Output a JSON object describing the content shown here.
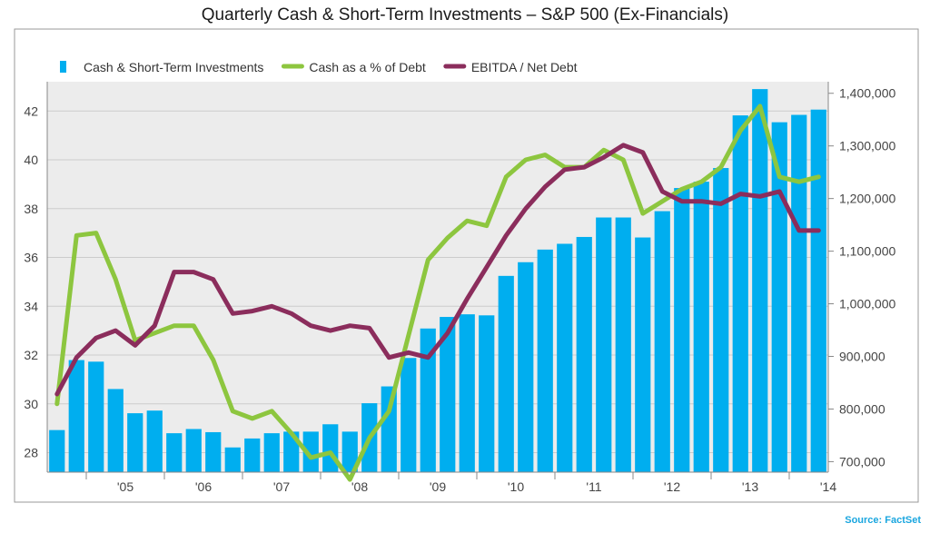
{
  "chart_data": {
    "type": "bar",
    "title": "Quarterly Cash & Short-Term Investments – S&P 500 (Ex-Financials)",
    "source": "Source: FactSet",
    "x_labels": [
      "'05",
      "'06",
      "'07",
      "'08",
      "'09",
      "'10",
      "'11",
      "'12",
      "'13",
      "'14"
    ],
    "left_axis": {
      "ticks": [
        "28",
        "30",
        "32",
        "34",
        "36",
        "38",
        "40",
        "42"
      ],
      "range": [
        27.2,
        43.2
      ]
    },
    "right_axis": {
      "ticks": [
        "700,000",
        "800,000",
        "900,000",
        "1,000,000",
        "1,100,000",
        "1,200,000",
        "1,300,000",
        "1,400,000"
      ],
      "range": [
        680000,
        1422000
      ]
    },
    "colors": {
      "bars": "#00aeef",
      "cash_pct": "#8dc63f",
      "ebitda": "#8b2d5c",
      "grid": "#cccccc",
      "plot_bg": "#ececec"
    },
    "legend": [
      {
        "name": "Cash & Short-Term Investments",
        "kind": "bar"
      },
      {
        "name": "Cash as a % of Debt",
        "kind": "line"
      },
      {
        "name": "EBITDA / Net Debt",
        "kind": "line"
      }
    ],
    "series": {
      "cash": [
        760000,
        893000,
        890000,
        838000,
        792000,
        797000,
        754000,
        762000,
        756000,
        727000,
        744000,
        754000,
        757000,
        757000,
        771000,
        757000,
        811000,
        843000,
        897000,
        953000,
        975000,
        980000,
        978000,
        1053000,
        1079000,
        1103000,
        1114000,
        1127000,
        1164000,
        1164000,
        1126000,
        1176000,
        1220000,
        1232000,
        1258000,
        1358000,
        1408000,
        1345000,
        1359000,
        1369000
      ],
      "cash_pct": [
        30.0,
        36.9,
        37.0,
        35.1,
        32.6,
        32.9,
        33.2,
        33.2,
        31.8,
        29.7,
        29.4,
        29.7,
        28.8,
        27.8,
        28.0,
        26.9,
        28.6,
        29.7,
        32.8,
        35.9,
        36.8,
        37.5,
        37.3,
        39.3,
        40.0,
        40.2,
        39.7,
        39.7,
        40.4,
        40.0,
        37.8,
        38.3,
        38.8,
        39.1,
        39.7,
        41.2,
        42.2,
        39.3,
        39.1,
        39.3
      ],
      "ebitda": [
        30.4,
        31.9,
        32.7,
        33.0,
        32.4,
        33.2,
        35.4,
        35.4,
        35.1,
        33.7,
        33.8,
        34.0,
        33.7,
        33.2,
        33.0,
        33.2,
        33.1,
        31.9,
        32.1,
        31.9,
        32.9,
        34.3,
        35.6,
        36.9,
        38.0,
        38.9,
        39.6,
        39.7,
        40.1,
        40.6,
        40.3,
        38.7,
        38.3,
        38.3,
        38.2,
        38.6,
        38.5,
        38.7,
        37.1,
        37.1
      ]
    }
  }
}
